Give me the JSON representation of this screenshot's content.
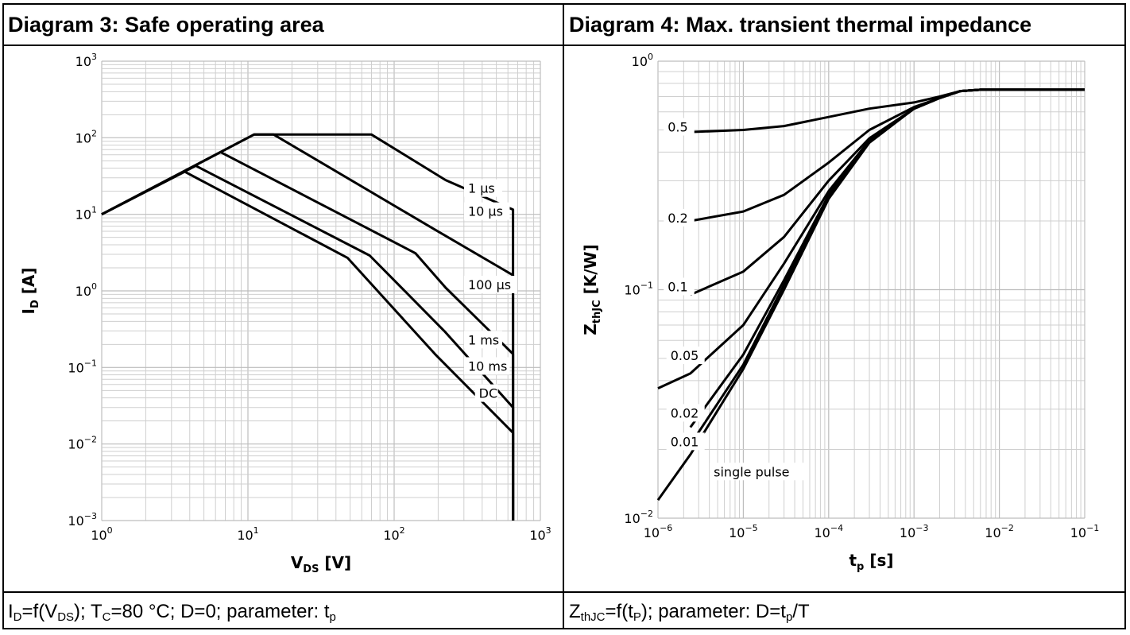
{
  "panels": [
    {
      "title": "Diagram 3: Safe operating area",
      "caption": "I_D=f(V_DS); T_C=80 °C; D=0; parameter: t_p",
      "caption_parts": [
        [
          "I",
          ""
        ],
        [
          "D",
          "sub"
        ],
        [
          "=f(V",
          ""
        ],
        [
          "DS",
          "sub"
        ],
        [
          "); T",
          ""
        ],
        [
          "C",
          "sub"
        ],
        [
          "=80 °C; D=0; parameter: t",
          ""
        ],
        [
          "p",
          "sub"
        ]
      ]
    },
    {
      "title": "Diagram 4: Max. transient thermal impedance",
      "caption": "Z_thJC=f(t_P); parameter: D=t_p/T",
      "caption_parts": [
        [
          "Z",
          ""
        ],
        [
          "thJC",
          "sub"
        ],
        [
          "=f(t",
          ""
        ],
        [
          "P",
          "sub"
        ],
        [
          "); parameter: D=t",
          ""
        ],
        [
          "p",
          "sub"
        ],
        [
          "/T",
          ""
        ]
      ]
    }
  ],
  "chart_data": [
    {
      "type": "line",
      "x_scale": "log",
      "y_scale": "log",
      "xlim": [
        1,
        1000
      ],
      "ylim": [
        0.001,
        1000
      ],
      "grid": true,
      "xlabel": "V_DS [V]",
      "xlabel_parts": [
        [
          "V",
          ""
        ],
        [
          "DS",
          "sub"
        ],
        [
          " [V]",
          ""
        ]
      ],
      "ylabel": "I_D [A]",
      "ylabel_parts": [
        [
          "I",
          ""
        ],
        [
          "D",
          "sub"
        ],
        [
          " [A]",
          ""
        ]
      ],
      "x_ticks": [
        1,
        10,
        100,
        1000
      ],
      "y_ticks": [
        0.001,
        0.01,
        0.1,
        1,
        10,
        100,
        1000
      ],
      "series": [
        {
          "name": "1 µs",
          "x": [
            1,
            11,
            70,
            225,
            650,
            650
          ],
          "y": [
            10,
            110,
            110,
            28,
            11.5,
            0.001
          ],
          "label_at": [
            1,
            0.48
          ]
        },
        {
          "name": "10 µs",
          "x": [
            1,
            11,
            15,
            185,
            650,
            650
          ],
          "y": [
            10,
            110,
            110,
            6.5,
            1.6,
            0.001
          ],
          "label_at": [
            1,
            0.48
          ]
        },
        {
          "name": "100 µs",
          "x": [
            1,
            6.5,
            140,
            225,
            650,
            650
          ],
          "y": [
            10,
            65,
            3.1,
            1.1,
            0.15,
            0.001
          ],
          "label_at": [
            0.5,
            0.5
          ]
        },
        {
          "name": "1 ms",
          "x": [
            1,
            4.4,
            68,
            220,
            650,
            650
          ],
          "y": [
            10,
            43,
            2.9,
            0.3,
            0.03,
            0.001
          ],
          "label_at": [
            0.82,
            0.5
          ]
        },
        {
          "name": "10 ms",
          "x": [
            1,
            3.7,
            48,
            190,
            650,
            650
          ],
          "y": [
            10,
            36,
            2.7,
            0.15,
            0.014,
            0.001
          ],
          "label_at": [
            0.5,
            0.5
          ]
        },
        {
          "name": "DC",
          "x": [],
          "y": [],
          "label_at": [
            0.5,
            0.5
          ]
        }
      ],
      "curve_labels": [
        {
          "text": "1 µs",
          "x": 320,
          "y": 20
        },
        {
          "text": "10 µs",
          "x": 320,
          "y": 10
        },
        {
          "text": "100 µs",
          "x": 320,
          "y": 1.1
        },
        {
          "text": "1 ms",
          "x": 320,
          "y": 0.21
        },
        {
          "text": "10 ms",
          "x": 320,
          "y": 0.095
        },
        {
          "text": "DC",
          "x": 380,
          "y": 0.042
        }
      ]
    },
    {
      "type": "line",
      "x_scale": "log",
      "y_scale": "log",
      "xlim": [
        1e-06,
        0.1
      ],
      "ylim": [
        0.01,
        1
      ],
      "grid": true,
      "xlabel": "t_p [s]",
      "xlabel_parts": [
        [
          "t",
          ""
        ],
        [
          "p",
          "sub"
        ],
        [
          " [s]",
          ""
        ]
      ],
      "ylabel": "Z_thJC [K/W]",
      "ylabel_parts": [
        [
          "Z",
          ""
        ],
        [
          "thJC",
          "sub"
        ],
        [
          " [K/W]",
          ""
        ]
      ],
      "x_ticks": [
        1e-06,
        1e-05,
        0.0001,
        0.001,
        0.01,
        0.1
      ],
      "y_ticks": [
        0.01,
        0.1,
        1
      ],
      "series": [
        {
          "name": "0.5",
          "x": [
            2.4e-06,
            1e-05,
            3e-05,
            0.0001,
            0.0003,
            0.001,
            0.002,
            0.0035,
            0.006,
            0.1
          ],
          "y": [
            0.49,
            0.5,
            0.52,
            0.57,
            0.62,
            0.66,
            0.7,
            0.74,
            0.75,
            0.75
          ]
        },
        {
          "name": "0.2",
          "x": [
            2.4e-06,
            1e-05,
            3e-05,
            0.0001,
            0.0003,
            0.001,
            0.002,
            0.0035,
            0.006,
            0.1
          ],
          "y": [
            0.2,
            0.22,
            0.26,
            0.36,
            0.5,
            0.63,
            0.69,
            0.74,
            0.75,
            0.75
          ]
        },
        {
          "name": "0.1",
          "x": [
            2.4e-06,
            1e-05,
            3e-05,
            0.0001,
            0.0003,
            0.001,
            0.002,
            0.0035,
            0.006,
            0.1
          ],
          "y": [
            0.095,
            0.12,
            0.17,
            0.3,
            0.46,
            0.62,
            0.69,
            0.74,
            0.75,
            0.75
          ]
        },
        {
          "name": "0.05",
          "x": [
            1e-06,
            2.4e-06,
            1e-05,
            3e-05,
            0.0001,
            0.0003,
            0.001,
            0.002,
            0.0035,
            0.006,
            0.1
          ],
          "y": [
            0.037,
            0.043,
            0.07,
            0.13,
            0.27,
            0.45,
            0.62,
            0.69,
            0.74,
            0.75,
            0.75
          ]
        },
        {
          "name": "0.02",
          "x": [
            2.4e-06,
            1e-05,
            3e-05,
            0.0001,
            0.0003,
            0.001,
            0.002,
            0.0035,
            0.006,
            0.1
          ],
          "y": [
            0.025,
            0.052,
            0.11,
            0.26,
            0.45,
            0.62,
            0.69,
            0.74,
            0.75,
            0.75
          ]
        },
        {
          "name": "0.01",
          "x": [
            2.4e-06,
            1e-05,
            3e-05,
            0.0001,
            0.0003,
            0.001,
            0.002,
            0.0035,
            0.006,
            0.1
          ],
          "y": [
            0.021,
            0.047,
            0.105,
            0.255,
            0.445,
            0.62,
            0.69,
            0.74,
            0.75,
            0.75
          ]
        },
        {
          "name": "single pulse",
          "x": [
            1e-06,
            2.4e-06,
            1e-05,
            3e-05,
            0.0001,
            0.0003,
            0.001,
            0.002,
            0.0035,
            0.006,
            0.1
          ],
          "y": [
            0.012,
            0.019,
            0.045,
            0.1,
            0.25,
            0.44,
            0.62,
            0.69,
            0.74,
            0.75,
            0.75
          ]
        }
      ],
      "curve_labels": [
        {
          "text": "0.5",
          "x": 1.3e-06,
          "y": 0.5
        },
        {
          "text": "0.2",
          "x": 1.3e-06,
          "y": 0.2
        },
        {
          "text": "0.1",
          "x": 1.3e-06,
          "y": 0.1
        },
        {
          "text": "0.05",
          "x": 1.4e-06,
          "y": 0.05
        },
        {
          "text": "0.02",
          "x": 1.4e-06,
          "y": 0.028
        },
        {
          "text": "0.01",
          "x": 1.4e-06,
          "y": 0.021
        },
        {
          "text": "single pulse",
          "x": 4.5e-06,
          "y": 0.0155
        }
      ]
    }
  ]
}
